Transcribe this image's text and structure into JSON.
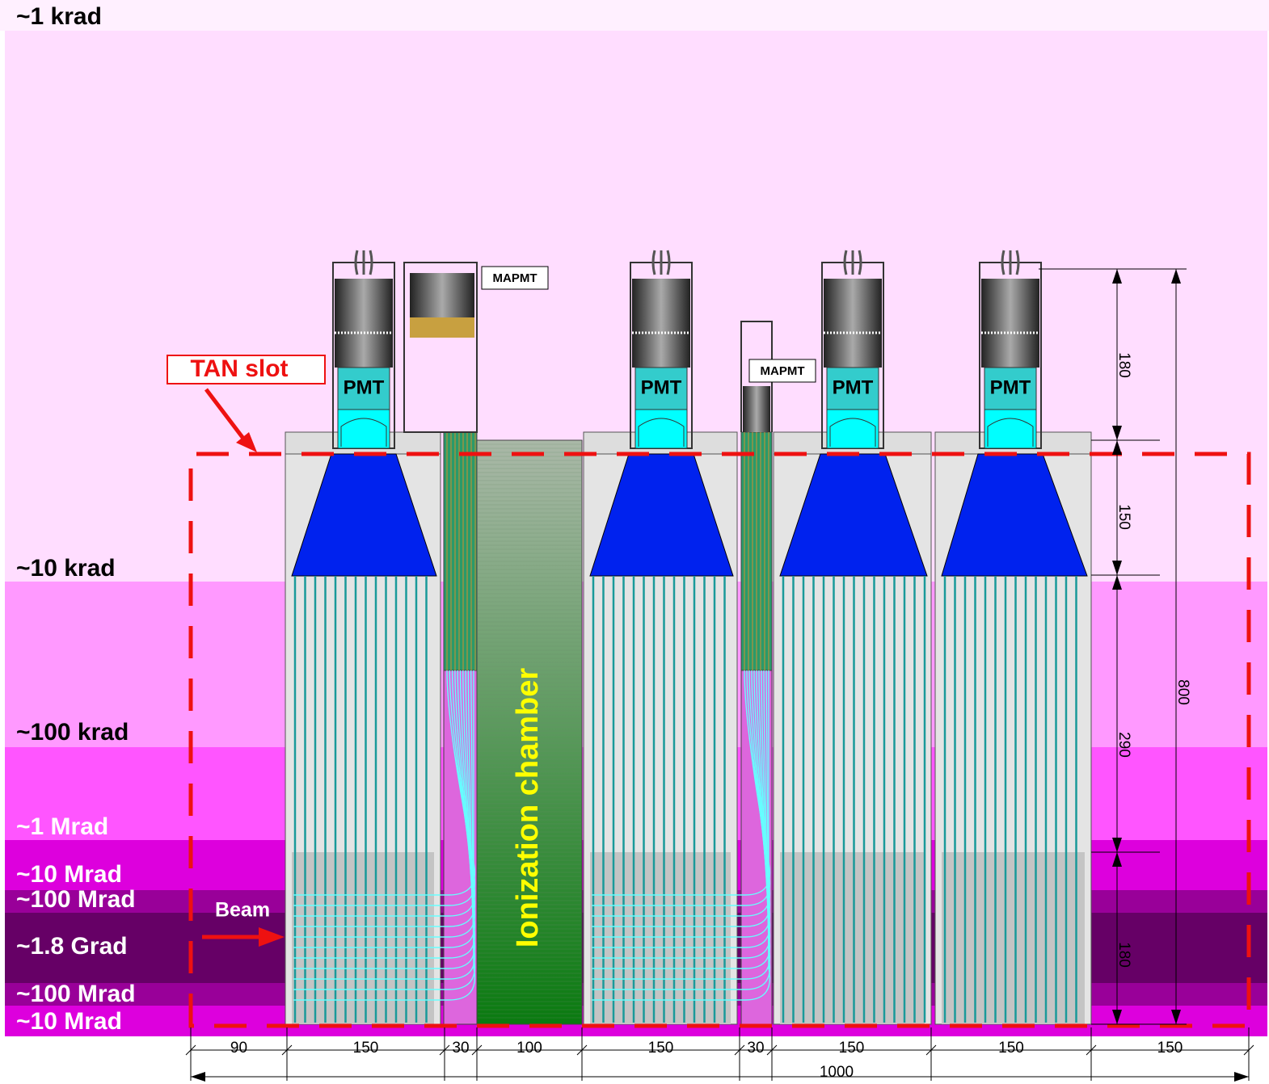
{
  "dose_levels": [
    "~1 krad",
    "~10 krad",
    "~100 krad",
    "~1 Mrad",
    "~10 Mrad",
    "~100 Mrad",
    "~1.8 Grad",
    "~100 Mrad",
    "~10 Mrad"
  ],
  "labels": {
    "tan_slot": "TAN slot",
    "beam": "Beam",
    "ionization_chamber": "Ionization chamber",
    "pmt": [
      "PMT",
      "PMT",
      "PMT",
      "PMT"
    ],
    "mapmt": [
      "MAPMT",
      "MAPMT"
    ]
  },
  "dimensions": {
    "horizontal": [
      90,
      150,
      30,
      100,
      150,
      30,
      150,
      150,
      150
    ],
    "horizontal_total": 1000,
    "vertical": [
      180,
      150,
      290,
      180
    ],
    "vertical_total": 800
  }
}
